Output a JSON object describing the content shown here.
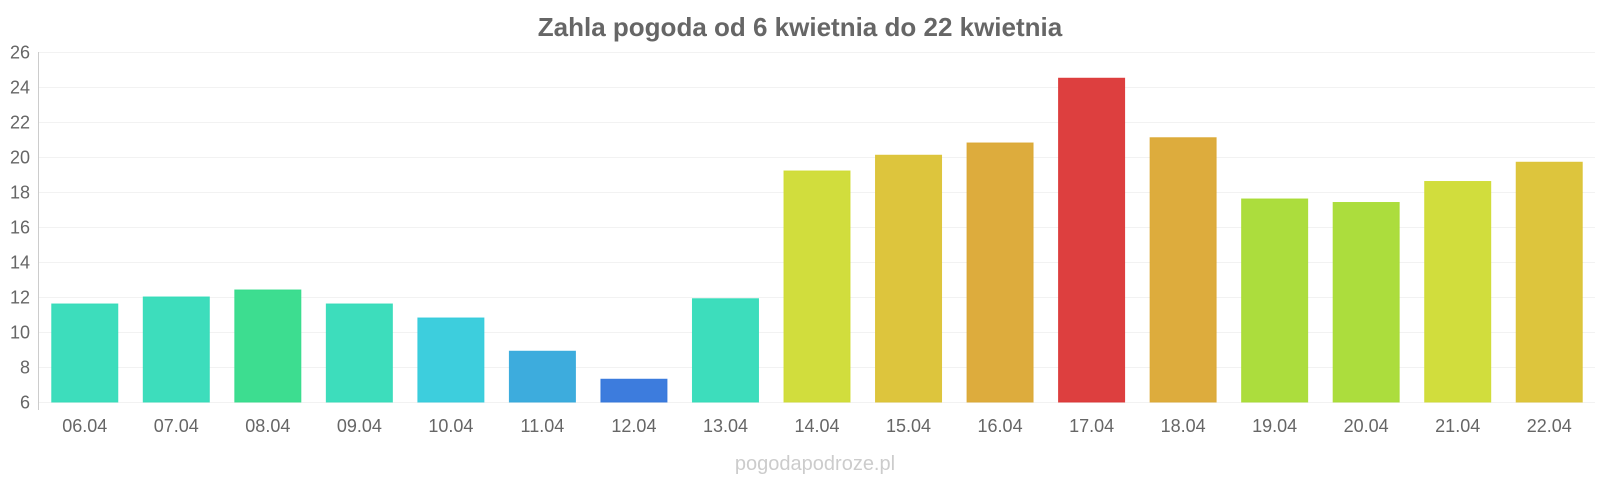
{
  "chart_data": {
    "type": "bar",
    "title": "Zahla pogoda od 6 kwietnia do 22 kwietnia",
    "xlabel": "",
    "ylabel": "",
    "ylim": [
      6,
      26
    ],
    "yticks": [
      "6",
      "8",
      "10",
      "12",
      "14",
      "16",
      "18",
      "20",
      "22",
      "24",
      "26"
    ],
    "grid": true,
    "categories": [
      "06.04",
      "07.04",
      "08.04",
      "09.04",
      "10.04",
      "11.04",
      "12.04",
      "13.04",
      "14.04",
      "15.04",
      "16.04",
      "17.04",
      "18.04",
      "19.04",
      "20.04",
      "21.04",
      "22.04"
    ],
    "values": [
      11.6,
      12.0,
      12.4,
      11.6,
      10.8,
      8.9,
      7.3,
      11.9,
      19.2,
      20.1,
      20.8,
      24.5,
      21.1,
      17.6,
      17.4,
      18.6,
      19.7
    ],
    "colors": [
      "#33dbb8",
      "#33dbb8",
      "#33db8a",
      "#33dbb8",
      "#33cbdb",
      "#33a8db",
      "#3375db",
      "#33dbb8",
      "#cfdb33",
      "#dbc233",
      "#dba833",
      "#db3535",
      "#dba833",
      "#a8db33",
      "#a8db33",
      "#cfdb33",
      "#dbc233"
    ]
  },
  "watermark": "pogodapodroze.pl"
}
